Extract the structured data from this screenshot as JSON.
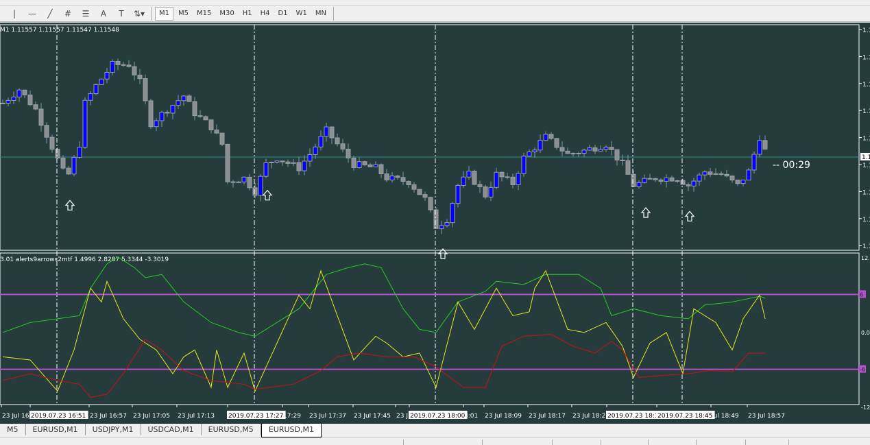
{
  "toolbar": {
    "tools": [
      {
        "icon": "vertical-line-icon",
        "glyph": "|"
      },
      {
        "icon": "horizontal-line-icon",
        "glyph": "—"
      },
      {
        "icon": "trendline-icon",
        "glyph": "╱"
      },
      {
        "icon": "equidistant-channel-icon",
        "glyph": "#"
      },
      {
        "icon": "fibonacci-icon",
        "glyph": "☰"
      },
      {
        "icon": "text-icon",
        "glyph": "A"
      },
      {
        "icon": "text-label-icon",
        "glyph": "T"
      },
      {
        "icon": "arrows-dropdown-icon",
        "glyph": "⇅▾"
      }
    ],
    "timeframes": [
      "M1",
      "M5",
      "M15",
      "M30",
      "H1",
      "H4",
      "D1",
      "W1",
      "MN"
    ],
    "active_timeframe": "M1"
  },
  "chart": {
    "ohlc_label": "M1  1.11557 1.11557 1.11547 1.11548",
    "current_price": 1.11548,
    "countdown": "00:29",
    "price_axis_labels": [
      "1.1",
      "1.1",
      "1.1",
      "1.1",
      "1.1",
      "1.1",
      "1.1",
      "1.1",
      "1.1"
    ],
    "price_box_label": "1.1",
    "colors": {
      "background": "#263c3c",
      "bull": "#0000ff",
      "bear": "#8a8f91",
      "wick": "#7a9aa8",
      "grid_line": "#2f8f8f",
      "level": "#b44fd0",
      "green": "#22cc22",
      "yellow": "#e8e820",
      "red": "#cc1111"
    },
    "price_path": [
      [
        0,
        1.11607
      ],
      [
        3,
        1.11622
      ],
      [
        6,
        1.116
      ],
      [
        9,
        1.11559
      ],
      [
        11,
        1.11532
      ],
      [
        12,
        1.11529
      ],
      [
        14,
        1.11562
      ],
      [
        15,
        1.11607
      ],
      [
        17,
        1.11626
      ],
      [
        20,
        1.11649
      ],
      [
        23,
        1.11649
      ],
      [
        25,
        1.1163
      ],
      [
        27,
        1.11585
      ],
      [
        30,
        1.116
      ],
      [
        33,
        1.11615
      ],
      [
        35,
        1.11596
      ],
      [
        38,
        1.11581
      ],
      [
        40,
        1.11562
      ],
      [
        41,
        1.11521
      ],
      [
        44,
        1.11525
      ],
      [
        46,
        1.1151
      ],
      [
        48,
        1.1154
      ],
      [
        50,
        1.11547
      ],
      [
        54,
        1.11536
      ],
      [
        56,
        1.11551
      ],
      [
        59,
        1.11577
      ],
      [
        61,
        1.11562
      ],
      [
        64,
        1.1154
      ],
      [
        68,
        1.11536
      ],
      [
        70,
        1.11525
      ],
      [
        74,
        1.11521
      ],
      [
        77,
        1.11502
      ],
      [
        79,
        1.11472
      ],
      [
        81,
        1.1148
      ],
      [
        83,
        1.11517
      ],
      [
        85,
        1.11529
      ],
      [
        88,
        1.11506
      ],
      [
        90,
        1.11529
      ],
      [
        93,
        1.11519
      ],
      [
        95,
        1.11547
      ],
      [
        99,
        1.1157
      ],
      [
        103,
        1.11551
      ],
      [
        106,
        1.11555
      ],
      [
        110,
        1.11562
      ],
      [
        113,
        1.1154
      ],
      [
        115,
        1.11517
      ],
      [
        119,
        1.11525
      ],
      [
        123,
        1.11525
      ],
      [
        125,
        1.11517
      ],
      [
        128,
        1.11532
      ],
      [
        131,
        1.11529
      ],
      [
        134,
        1.11517
      ],
      [
        136,
        1.11532
      ],
      [
        138,
        1.1157
      ],
      [
        139,
        1.11555
      ]
    ],
    "signal_arrows_bars": [
      12,
      48,
      80,
      117,
      125
    ],
    "separator_bars": [
      10,
      46,
      79,
      115,
      124
    ],
    "time_labels": [
      {
        "text": "23 Jul 16:",
        "hl": false
      },
      {
        "text": "2019.07.23 16:51",
        "hl": true
      },
      {
        "text": "23 Jul 16:57",
        "hl": false
      },
      {
        "text": "23 Jul 17:05",
        "hl": false
      },
      {
        "text": "23 Jul 17:13",
        "hl": false
      },
      {
        "text": "2019.07.23 17:27",
        "hl": true
      },
      {
        "text": "17:29",
        "hl": false
      },
      {
        "text": "23 Jul 17:37",
        "hl": false
      },
      {
        "text": "23 Jul 17:45",
        "hl": false
      },
      {
        "text": "23 J",
        "hl": false
      },
      {
        "text": "2019.07.23 18:00",
        "hl": true
      },
      {
        "text": "8:01",
        "hl": false
      },
      {
        "text": "23 Jul 18:09",
        "hl": false
      },
      {
        "text": "23 Jul 18:17",
        "hl": false
      },
      {
        "text": "23 Jul 18:25",
        "hl": false
      },
      {
        "text": "2019.07.23 18:3",
        "hl": true
      },
      {
        "text": "2019.07.23 18:45",
        "hl": true
      },
      {
        "text": "Jul 18:49",
        "hl": false
      },
      {
        "text": "23 Jul 18:57",
        "hl": false
      }
    ]
  },
  "indicator": {
    "label": "3.01 alerts9arrows2mtf 1.4996 2.8287 5.3344 -3.3019",
    "axis_labels": [
      "12.",
      "0.0",
      "-12"
    ],
    "levels": [
      {
        "value": 6,
        "label": "6"
      },
      {
        "value": -6,
        "label": "-6"
      }
    ],
    "range": [
      -12,
      12
    ],
    "green": [
      [
        0,
        -0.1
      ],
      [
        5,
        1.5
      ],
      [
        10,
        2.1
      ],
      [
        14,
        2.6
      ],
      [
        16,
        7.0
      ],
      [
        19,
        10.9
      ],
      [
        21,
        12.0
      ],
      [
        24,
        10.3
      ],
      [
        26,
        8.7
      ],
      [
        29,
        9.2
      ],
      [
        33,
        4.8
      ],
      [
        38,
        1.5
      ],
      [
        43,
        -0.1
      ],
      [
        46,
        -0.7
      ],
      [
        50,
        1.5
      ],
      [
        54,
        3.7
      ],
      [
        59,
        9.2
      ],
      [
        63,
        10.3
      ],
      [
        66,
        10.9
      ],
      [
        69,
        10.3
      ],
      [
        73,
        3.7
      ],
      [
        76,
        0.4
      ],
      [
        79,
        -0.1
      ],
      [
        83,
        4.8
      ],
      [
        88,
        6.5
      ],
      [
        90,
        8.1
      ],
      [
        95,
        7.6
      ],
      [
        99,
        9.2
      ],
      [
        105,
        9.2
      ],
      [
        109,
        7.0
      ],
      [
        111,
        2.6
      ],
      [
        115,
        3.7
      ],
      [
        120,
        2.6
      ],
      [
        125,
        2.1
      ],
      [
        128,
        4.3
      ],
      [
        133,
        4.8
      ],
      [
        138,
        5.7
      ],
      [
        139,
        5.4
      ]
    ],
    "yellow": [
      [
        0,
        -4.0
      ],
      [
        5,
        -4.5
      ],
      [
        10,
        -9.5
      ],
      [
        13,
        -2.9
      ],
      [
        16,
        7.0
      ],
      [
        18,
        4.8
      ],
      [
        19,
        8.1
      ],
      [
        22,
        2.1
      ],
      [
        25,
        -1.2
      ],
      [
        28,
        -2.9
      ],
      [
        31,
        -6.7
      ],
      [
        33,
        -4.0
      ],
      [
        35,
        -2.9
      ],
      [
        38,
        -8.9
      ],
      [
        39,
        -2.9
      ],
      [
        41,
        -8.9
      ],
      [
        44,
        -3.4
      ],
      [
        46,
        -9.5
      ],
      [
        50,
        -1.8
      ],
      [
        54,
        5.9
      ],
      [
        56,
        3.7
      ],
      [
        58,
        9.8
      ],
      [
        61,
        2.6
      ],
      [
        64,
        -4.5
      ],
      [
        68,
        -0.7
      ],
      [
        70,
        -1.8
      ],
      [
        73,
        -4.0
      ],
      [
        76,
        -3.4
      ],
      [
        79,
        -8.9
      ],
      [
        83,
        4.8
      ],
      [
        86,
        0.4
      ],
      [
        90,
        7.0
      ],
      [
        93,
        2.6
      ],
      [
        96,
        3.2
      ],
      [
        97,
        7.0
      ],
      [
        99,
        9.8
      ],
      [
        103,
        0.4
      ],
      [
        106,
        -0.1
      ],
      [
        110,
        1.5
      ],
      [
        113,
        -2.3
      ],
      [
        115,
        -7.3
      ],
      [
        118,
        -1.8
      ],
      [
        121,
        -0.1
      ],
      [
        124,
        -6.7
      ],
      [
        126,
        3.7
      ],
      [
        130,
        1.5
      ],
      [
        133,
        -2.9
      ],
      [
        135,
        2.1
      ],
      [
        138,
        5.9
      ],
      [
        139,
        2.1
      ]
    ],
    "red": [
      [
        0,
        -7.8
      ],
      [
        5,
        -6.7
      ],
      [
        10,
        -7.8
      ],
      [
        14,
        -8.4
      ],
      [
        16,
        -10.5
      ],
      [
        19,
        -10.0
      ],
      [
        22,
        -6.7
      ],
      [
        26,
        -1.2
      ],
      [
        29,
        -2.9
      ],
      [
        33,
        -6.2
      ],
      [
        38,
        -7.8
      ],
      [
        44,
        -8.4
      ],
      [
        46,
        -9.2
      ],
      [
        53,
        -8.4
      ],
      [
        58,
        -6.2
      ],
      [
        61,
        -4.0
      ],
      [
        65,
        -3.4
      ],
      [
        70,
        -4.0
      ],
      [
        75,
        -4.0
      ],
      [
        79,
        -5.6
      ],
      [
        84,
        -8.9
      ],
      [
        88,
        -8.9
      ],
      [
        91,
        -2.3
      ],
      [
        95,
        -0.7
      ],
      [
        100,
        -0.4
      ],
      [
        104,
        -2.3
      ],
      [
        108,
        -3.4
      ],
      [
        111,
        -1.5
      ],
      [
        113,
        -2.9
      ],
      [
        116,
        -7.3
      ],
      [
        120,
        -7.0
      ],
      [
        125,
        -6.7
      ],
      [
        129,
        -6.2
      ],
      [
        133,
        -6.4
      ],
      [
        136,
        -3.4
      ],
      [
        139,
        -3.4
      ]
    ]
  },
  "tabs": [
    {
      "label": "M5",
      "active": false
    },
    {
      "label": "EURUSD,M1",
      "active": false
    },
    {
      "label": "USDJPY,M1",
      "active": false
    },
    {
      "label": "USDCAD,M1",
      "active": false
    },
    {
      "label": "EURUSD,M5",
      "active": false
    },
    {
      "label": "EURUSD,M1",
      "active": true
    }
  ]
}
